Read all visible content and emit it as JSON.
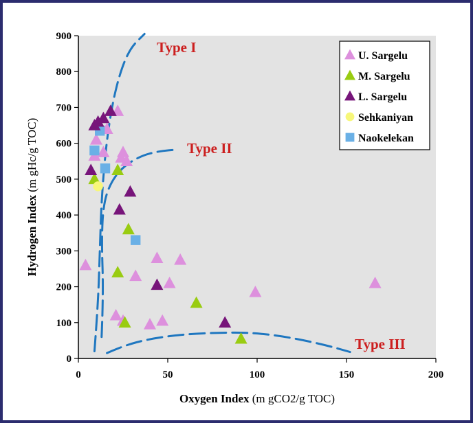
{
  "chart_data": {
    "type": "scatter",
    "xlabel": "Oxygen Index",
    "xlabel_unit": "(m gCO2/g TOC)",
    "ylabel": "Hydrogen Index",
    "ylabel_unit": "(m gHc/g TOC)",
    "xlim": [
      0,
      200
    ],
    "ylim": [
      0,
      900
    ],
    "xticks": [
      "0",
      "50",
      "100",
      "150",
      "200"
    ],
    "yticks": [
      "0",
      "100",
      "200",
      "300",
      "400",
      "500",
      "600",
      "700",
      "800",
      "900"
    ],
    "grid": false,
    "legend_position": "top-right",
    "kerogen_labels": [
      "Type I",
      "Type II",
      "Type III"
    ],
    "series": [
      {
        "name": "U. Sargelu",
        "marker": "triangle",
        "color": "#dd90dd",
        "points": [
          [
            4,
            260
          ],
          [
            9,
            565
          ],
          [
            10,
            610
          ],
          [
            12,
            650
          ],
          [
            14,
            575
          ],
          [
            16,
            640
          ],
          [
            22,
            690
          ],
          [
            24,
            560
          ],
          [
            25,
            575
          ],
          [
            27,
            550
          ],
          [
            21,
            120
          ],
          [
            25,
            105
          ],
          [
            32,
            230
          ],
          [
            40,
            95
          ],
          [
            44,
            280
          ],
          [
            47,
            105
          ],
          [
            51,
            210
          ],
          [
            57,
            275
          ],
          [
            99,
            185
          ],
          [
            166,
            210
          ]
        ]
      },
      {
        "name": "M. Sargelu",
        "marker": "triangle",
        "color": "#99cc11",
        "points": [
          [
            9,
            500
          ],
          [
            22,
            525
          ],
          [
            28,
            360
          ],
          [
            22,
            240
          ],
          [
            26,
            100
          ],
          [
            66,
            155
          ],
          [
            91,
            55
          ]
        ]
      },
      {
        "name": "L. Sargelu",
        "marker": "triangle",
        "color": "#77157a",
        "points": [
          [
            7,
            525
          ],
          [
            9,
            650
          ],
          [
            11,
            660
          ],
          [
            14,
            670
          ],
          [
            18,
            690
          ],
          [
            23,
            415
          ],
          [
            29,
            465
          ],
          [
            44,
            205
          ],
          [
            82,
            100
          ]
        ]
      },
      {
        "name": "Sehkaniyan",
        "marker": "circle",
        "color": "#f7f77a",
        "points": [
          [
            11,
            480
          ]
        ]
      },
      {
        "name": "Naokelekan",
        "marker": "square",
        "color": "#6ab0e6",
        "points": [
          [
            9,
            580
          ],
          [
            12,
            635
          ],
          [
            15,
            530
          ],
          [
            32,
            330
          ]
        ]
      }
    ],
    "kerogen_lines": {
      "color": "#1f77c0",
      "type_i": [
        [
          9,
          20
        ],
        [
          11,
          150
        ],
        [
          12,
          300
        ],
        [
          13,
          450
        ],
        [
          16,
          620
        ],
        [
          21,
          760
        ],
        [
          28,
          860
        ],
        [
          37,
          905
        ]
      ],
      "type_ii": [
        [
          13,
          60
        ],
        [
          14,
          180
        ],
        [
          13,
          330
        ],
        [
          14,
          430
        ],
        [
          18,
          490
        ],
        [
          25,
          535
        ],
        [
          35,
          565
        ],
        [
          45,
          578
        ],
        [
          56,
          583
        ]
      ],
      "type_iii": [
        [
          16,
          15
        ],
        [
          25,
          35
        ],
        [
          40,
          55
        ],
        [
          60,
          68
        ],
        [
          80,
          72
        ],
        [
          95,
          72
        ],
        [
          110,
          65
        ],
        [
          125,
          52
        ],
        [
          140,
          35
        ],
        [
          152,
          18
        ]
      ]
    }
  }
}
